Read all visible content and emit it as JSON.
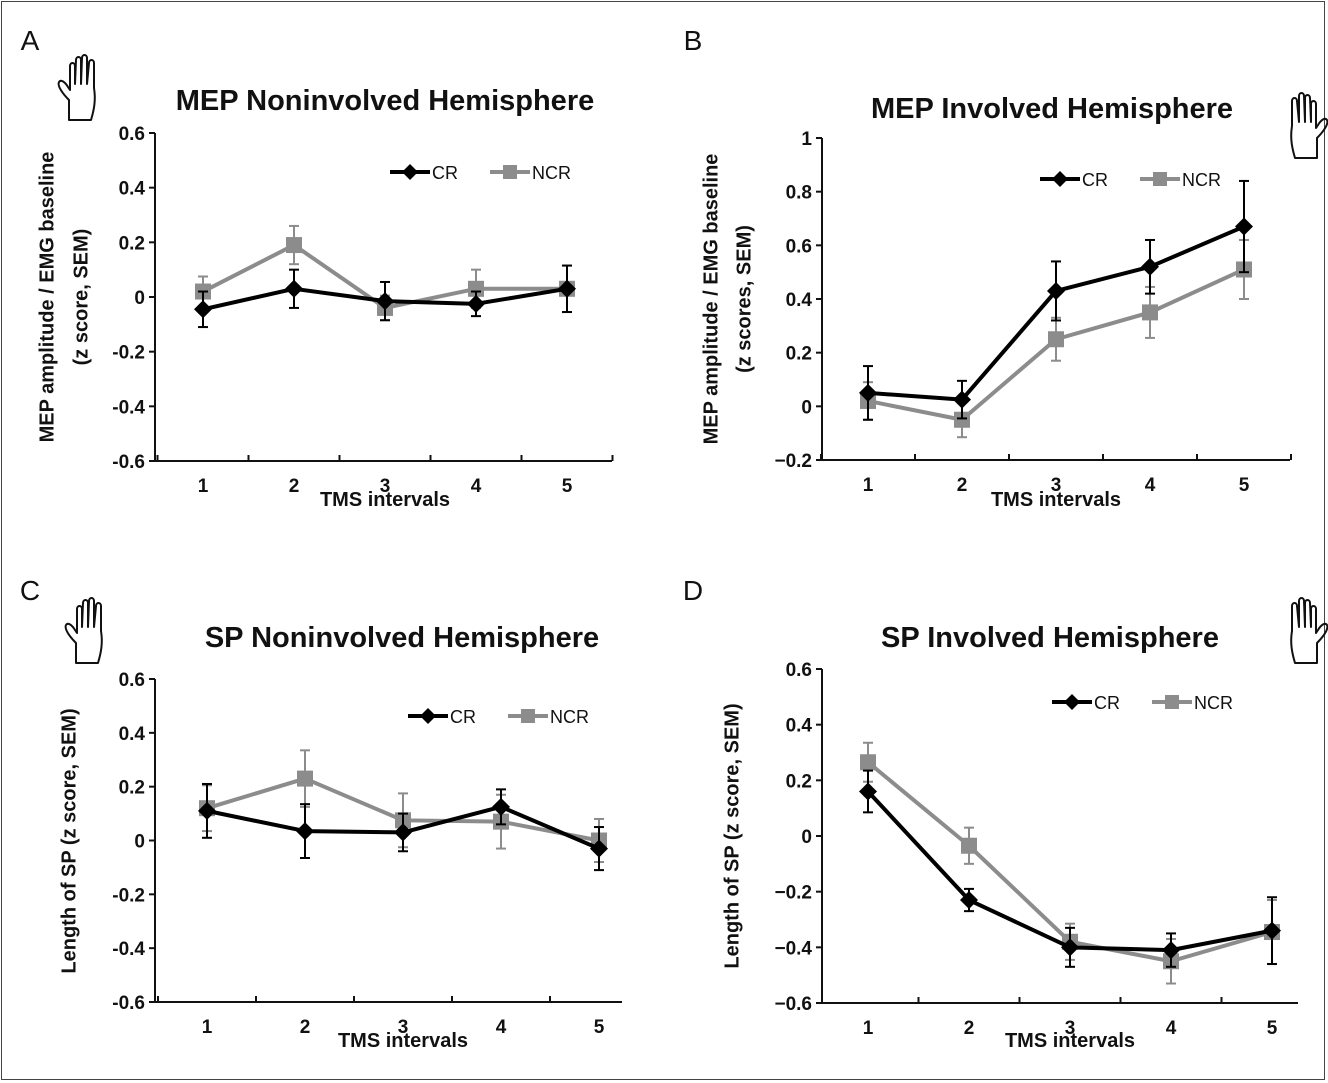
{
  "chart_data": [
    {
      "panel": "A",
      "type": "line",
      "title": "MEP Noninvolved Hemisphere",
      "xlabel": "TMS intervals",
      "ylabel": [
        "MEP amplitude / EMG baseline",
        "(z score, SEM)"
      ],
      "categories": [
        "1",
        "2",
        "3",
        "4",
        "5"
      ],
      "ylim": [
        -0.6,
        0.6
      ],
      "yticks": [
        -0.6,
        -0.4,
        -0.2,
        0,
        0.2,
        0.4,
        0.6
      ],
      "ytick_labels": [
        "-0.6",
        "-0.4",
        "-0.2",
        "0",
        "0.2",
        "0.4",
        "0.6"
      ],
      "legend": "top-right",
      "hand": "left",
      "series": [
        {
          "name": "CR",
          "color": "#000000",
          "marker": "diamond",
          "values": [
            -0.045,
            0.03,
            -0.015,
            -0.025,
            0.03
          ],
          "errors": [
            0.065,
            0.07,
            0.07,
            0.045,
            0.085
          ]
        },
        {
          "name": "NCR",
          "color": "#8c8c8c",
          "marker": "square",
          "values": [
            0.02,
            0.19,
            -0.04,
            0.03,
            0.03
          ],
          "errors": [
            0.055,
            0.07,
            0.045,
            0.07,
            0.085
          ]
        }
      ]
    },
    {
      "panel": "B",
      "type": "line",
      "title": "MEP Involved Hemisphere",
      "xlabel": "TMS intervals",
      "ylabel": [
        "MEP amplitude / EMG baseline",
        "(z scores, SEM)"
      ],
      "categories": [
        "1",
        "2",
        "3",
        "4",
        "5"
      ],
      "ylim": [
        -0.2,
        1
      ],
      "yticks": [
        -0.2,
        0,
        0.2,
        0.4,
        0.6,
        0.8,
        1
      ],
      "ytick_labels": [
        "−0.2",
        "0",
        "0.2",
        "0.4",
        "0.6",
        "0.8",
        "1"
      ],
      "legend": "top-right",
      "hand": "right",
      "series": [
        {
          "name": "CR",
          "color": "#000000",
          "marker": "diamond",
          "values": [
            0.05,
            0.025,
            0.43,
            0.52,
            0.67
          ],
          "errors": [
            0.1,
            0.07,
            0.11,
            0.1,
            0.17
          ]
        },
        {
          "name": "NCR",
          "color": "#8c8c8c",
          "marker": "square",
          "values": [
            0.02,
            -0.05,
            0.25,
            0.35,
            0.51
          ],
          "errors": [
            0.07,
            0.065,
            0.08,
            0.095,
            0.11
          ]
        }
      ]
    },
    {
      "panel": "C",
      "type": "line",
      "title": "SP Noninvolved Hemisphere",
      "xlabel": "TMS intervals",
      "ylabel": [
        "Length of SP (z score, SEM)"
      ],
      "categories": [
        "1",
        "2",
        "3",
        "4",
        "5"
      ],
      "ylim": [
        -0.6,
        0.6
      ],
      "yticks": [
        -0.6,
        -0.4,
        -0.2,
        0,
        0.2,
        0.4,
        0.6
      ],
      "ytick_labels": [
        "-0.6",
        "-0.4",
        "-0.2",
        "0",
        "0.2",
        "0.4",
        "0.6"
      ],
      "legend": "top-right",
      "hand": "left",
      "series": [
        {
          "name": "CR",
          "color": "#000000",
          "marker": "diamond",
          "values": [
            0.11,
            0.035,
            0.03,
            0.125,
            -0.03
          ],
          "errors": [
            0.1,
            0.1,
            0.07,
            0.065,
            0.08
          ]
        },
        {
          "name": "NCR",
          "color": "#8c8c8c",
          "marker": "square",
          "values": [
            0.12,
            0.23,
            0.075,
            0.07,
            0.0
          ],
          "errors": [
            0.085,
            0.105,
            0.1,
            0.1,
            0.08
          ]
        }
      ]
    },
    {
      "panel": "D",
      "type": "line",
      "title": "SP Involved Hemisphere",
      "xlabel": "TMS intervals",
      "ylabel": [
        "Length of SP (z score, SEM)"
      ],
      "categories": [
        "1",
        "2",
        "3",
        "4",
        "5"
      ],
      "ylim": [
        -0.6,
        0.6
      ],
      "yticks": [
        -0.6,
        -0.4,
        -0.2,
        0,
        0.2,
        0.4,
        0.6
      ],
      "ytick_labels": [
        "−0.6",
        "−0.4",
        "−0.2",
        "0",
        "0.2",
        "0.4",
        "0.6"
      ],
      "legend": "top-right",
      "hand": "right",
      "series": [
        {
          "name": "CR",
          "color": "#000000",
          "marker": "diamond",
          "values": [
            0.16,
            -0.23,
            -0.4,
            -0.41,
            -0.34
          ],
          "errors": [
            0.075,
            0.04,
            0.07,
            0.06,
            0.12
          ]
        },
        {
          "name": "NCR",
          "color": "#8c8c8c",
          "marker": "square",
          "values": [
            0.265,
            -0.035,
            -0.38,
            -0.45,
            -0.345
          ],
          "errors": [
            0.07,
            0.065,
            0.065,
            0.08,
            0.115
          ]
        }
      ]
    }
  ]
}
